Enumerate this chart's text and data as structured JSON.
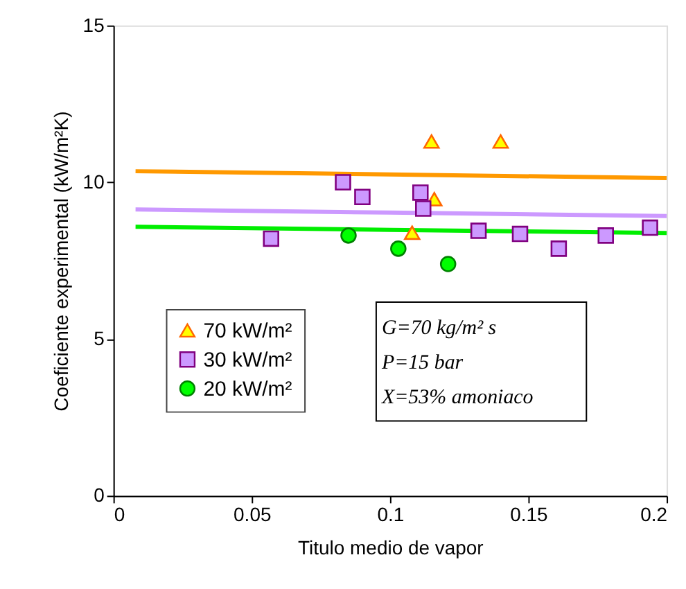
{
  "chart_data": {
    "type": "scatter",
    "xlabel": "Titulo medio de vapor",
    "ylabel": "Coeficiente experimental (kW/m²K)",
    "xlim": [
      0,
      0.2
    ],
    "xticks": [
      0,
      0.05,
      0.1,
      0.15,
      0.2
    ],
    "ylim": [
      0,
      15
    ],
    "yticks": [
      0,
      5,
      10,
      15
    ],
    "grid": false,
    "legend": "bottom left",
    "annotations": [
      "G=70 kg/m² s",
      "P=15 bar",
      "X=53% amoniaco"
    ],
    "series": [
      {
        "type": "line",
        "color": "#ff9900",
        "x": [
          0.008,
          0.1,
          0.2
        ],
        "values": [
          10.35,
          10.25,
          10.13
        ],
        "marker": "none"
      },
      {
        "type": "line",
        "color": "#cc99ff",
        "x": [
          0.008,
          0.1,
          0.2
        ],
        "values": [
          9.13,
          9.03,
          8.92
        ],
        "marker": "none"
      },
      {
        "type": "line",
        "color": "#00ee00",
        "x": [
          0.008,
          0.1,
          0.2
        ],
        "values": [
          8.58,
          8.48,
          8.38
        ],
        "marker": "none"
      },
      {
        "name": "70 kW/m²",
        "color": "#ffff00",
        "marker": "triangle",
        "x": [
          0.115,
          0.14,
          0.116,
          0.108
        ],
        "values": [
          11.3,
          11.3,
          9.46,
          8.39
        ]
      },
      {
        "name": "30 kW/m²",
        "color": "#cc99ff",
        "marker": "square",
        "x": [
          0.083,
          0.09,
          0.111,
          0.112,
          0.057,
          0.132,
          0.147,
          0.161,
          0.178,
          0.194
        ],
        "values": [
          10.0,
          9.53,
          9.67,
          9.16,
          8.2,
          8.45,
          8.35,
          7.88,
          8.3,
          8.55
        ]
      },
      {
        "name": "20 kW/m²",
        "color": "#00ff00",
        "marker": "circle",
        "x": [
          0.085,
          0.103,
          0.121
        ],
        "values": [
          8.3,
          7.88,
          7.39
        ]
      }
    ]
  }
}
